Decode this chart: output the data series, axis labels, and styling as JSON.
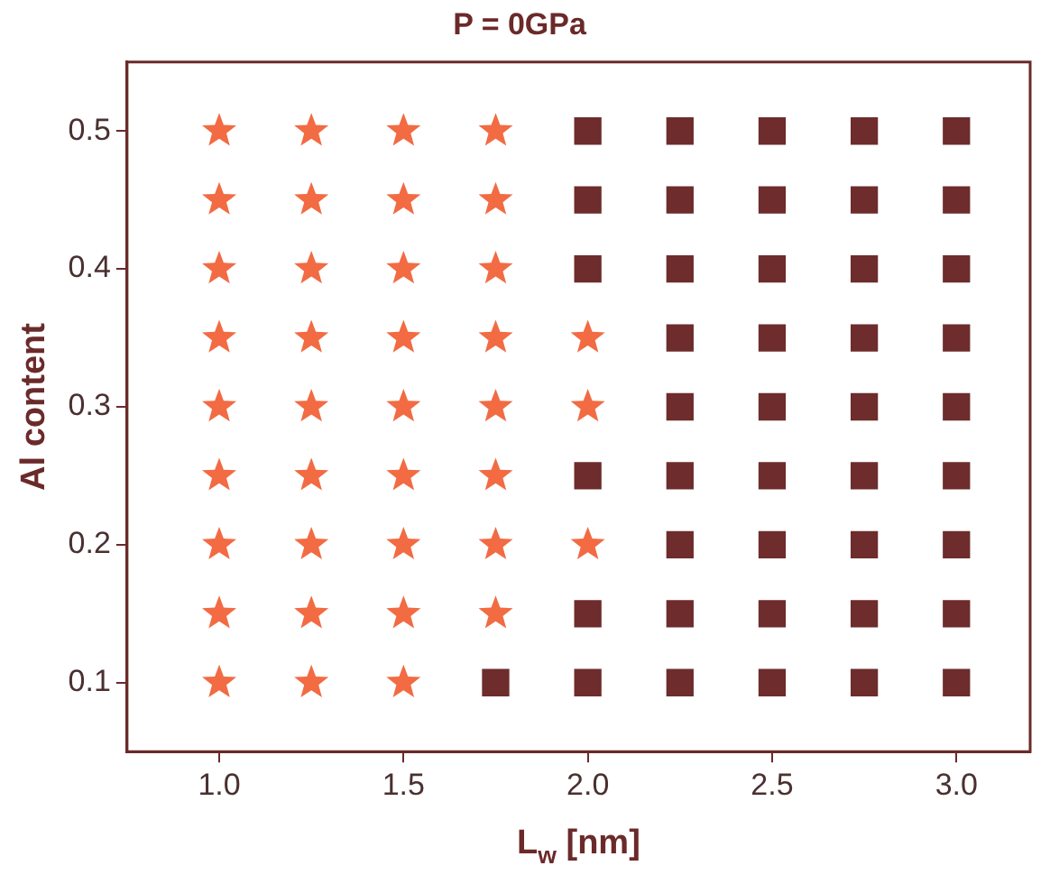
{
  "chart_data": {
    "type": "scatter",
    "title": "P = 0GPa",
    "xlabel": "L$_{w}$ [nm]",
    "ylabel": "Al content",
    "xlim": [
      0.75,
      3.2
    ],
    "ylim": [
      0.05,
      0.55
    ],
    "xticks": [
      {
        "value": 1,
        "label": "1.0"
      },
      {
        "value": 1.5,
        "label": "1.5"
      },
      {
        "value": 2,
        "label": "2.0"
      },
      {
        "value": 2.5,
        "label": "2.5"
      },
      {
        "value": 3,
        "label": "3.0"
      }
    ],
    "yticks": [
      0.1,
      0.2,
      0.3,
      0.4,
      0.5
    ],
    "grid": false,
    "legend": false,
    "series": [
      {
        "color": "#f26b43",
        "marker": "star",
        "x": [
          1,
          1.25,
          1.5,
          1,
          1.25,
          1.5,
          1.75,
          1,
          1.25,
          1.5,
          1.75,
          2,
          1,
          1.25,
          1.5,
          1.75,
          1,
          1.25,
          1.5,
          1.75,
          2,
          1,
          1.25,
          1.5,
          1.75,
          2,
          1,
          1.25,
          1.5,
          1.75,
          1,
          1.25,
          1.5,
          1.75,
          1,
          1.25,
          1.5,
          1.75
        ],
        "values": [
          0.1,
          0.1,
          0.1,
          0.15,
          0.15,
          0.15,
          0.15,
          0.2,
          0.2,
          0.2,
          0.2,
          0.2,
          0.25,
          0.25,
          0.25,
          0.25,
          0.3,
          0.3,
          0.3,
          0.3,
          0.3,
          0.35,
          0.35,
          0.35,
          0.35,
          0.35,
          0.4,
          0.4,
          0.4,
          0.4,
          0.45,
          0.45,
          0.45,
          0.45,
          0.5,
          0.5,
          0.5,
          0.5
        ]
      },
      {
        "color": "#6e2c2c",
        "marker": "square",
        "x": [
          1.75,
          2,
          2.25,
          2.5,
          2.75,
          3,
          2,
          2.25,
          2.5,
          2.75,
          3,
          2.25,
          2.5,
          2.75,
          3,
          2,
          2.25,
          2.5,
          2.75,
          3,
          2.25,
          2.5,
          2.75,
          3,
          2.25,
          2.5,
          2.75,
          3,
          2,
          2.25,
          2.5,
          2.75,
          3,
          2,
          2.25,
          2.5,
          2.75,
          3,
          2,
          2.25,
          2.5,
          2.75,
          3
        ],
        "values": [
          0.1,
          0.1,
          0.1,
          0.1,
          0.1,
          0.1,
          0.15,
          0.15,
          0.15,
          0.15,
          0.15,
          0.2,
          0.2,
          0.2,
          0.2,
          0.25,
          0.25,
          0.25,
          0.25,
          0.25,
          0.3,
          0.3,
          0.3,
          0.3,
          0.35,
          0.35,
          0.35,
          0.35,
          0.4,
          0.4,
          0.4,
          0.4,
          0.4,
          0.45,
          0.45,
          0.45,
          0.45,
          0.45,
          0.5,
          0.5,
          0.5,
          0.5,
          0.5
        ]
      }
    ]
  }
}
